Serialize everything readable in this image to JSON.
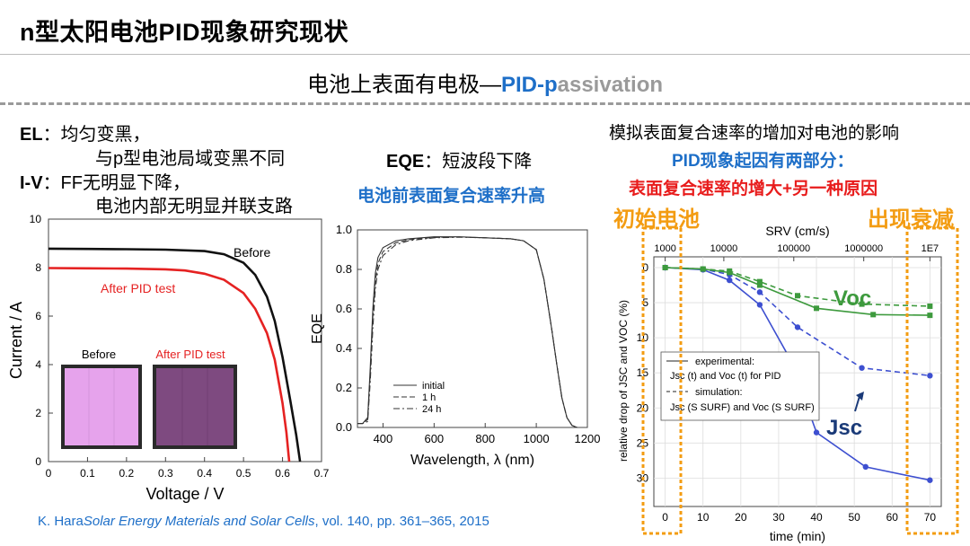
{
  "header": {
    "title": "n型太阳电池PID现象研究现状",
    "subtitle_pre": "电池上表面有电极—",
    "subtitle_hl1": "PID-p",
    "subtitle_hl2": "assivation"
  },
  "left_text": {
    "el_label": "EL",
    "el_line1": "：均匀变黑，",
    "el_line2": "与p型电池局域变黑不同",
    "iv_label": "I-V",
    "iv_line1": "：FF无明显下降，",
    "iv_line2": "电池内部无明显并联支路"
  },
  "middle_text": {
    "eqe_label": "EQE",
    "eqe_line": "：短波段下降",
    "eqe_note": "电池前表面复合速率升高"
  },
  "right_text": {
    "line1": "模拟表面复合速率的增加对电池的影响",
    "line2": "PID现象起因有两部分：",
    "line3": "表面复合速率的增大+另一种原因",
    "left_tag": "初始电池",
    "right_tag": "出现衰减"
  },
  "citation": {
    "author": "K. Hara",
    "journal": "Solar Energy Materials and Solar Cells",
    "rest": ", vol. 140, pp. 361–365, 2015"
  },
  "chart_data": [
    {
      "type": "line",
      "xlabel": "Voltage / V",
      "ylabel": "Current / A",
      "xlim": [
        0,
        0.7
      ],
      "ylim": [
        0,
        10
      ],
      "xticks": [
        "0",
        "0.1",
        "0.2",
        "0.3",
        "0.4",
        "0.5",
        "0.6",
        "0.7"
      ],
      "yticks": [
        "0",
        "2",
        "4",
        "6",
        "8",
        "10"
      ],
      "series": [
        {
          "name": "Before",
          "color": "#111111",
          "points": [
            [
              0,
              8.78
            ],
            [
              0.1,
              8.77
            ],
            [
              0.2,
              8.76
            ],
            [
              0.3,
              8.74
            ],
            [
              0.4,
              8.68
            ],
            [
              0.45,
              8.55
            ],
            [
              0.5,
              8.2
            ],
            [
              0.53,
              7.7
            ],
            [
              0.56,
              6.8
            ],
            [
              0.58,
              5.8
            ],
            [
              0.6,
              4.3
            ],
            [
              0.62,
              2.5
            ],
            [
              0.635,
              1.1
            ],
            [
              0.645,
              0
            ]
          ]
        },
        {
          "name": "After PID test",
          "color": "#e52222",
          "points": [
            [
              0,
              7.98
            ],
            [
              0.1,
              7.97
            ],
            [
              0.2,
              7.96
            ],
            [
              0.3,
              7.93
            ],
            [
              0.35,
              7.88
            ],
            [
              0.4,
              7.75
            ],
            [
              0.45,
              7.5
            ],
            [
              0.5,
              6.95
            ],
            [
              0.53,
              6.3
            ],
            [
              0.56,
              5.3
            ],
            [
              0.58,
              4.2
            ],
            [
              0.6,
              2.4
            ],
            [
              0.61,
              1.2
            ],
            [
              0.617,
              0
            ]
          ]
        }
      ],
      "inset_labels": [
        "Before",
        "After PID test"
      ],
      "inset_colors": [
        "#e6a3ec",
        "#7e4a80"
      ]
    },
    {
      "type": "line",
      "xlabel": "Wavelength, λ (nm)",
      "ylabel": "EQE",
      "xlim": [
        300,
        1200
      ],
      "ylim": [
        0,
        1.0
      ],
      "xticks": [
        "400",
        "600",
        "800",
        "1000",
        "1200"
      ],
      "yticks": [
        "0.0",
        "0.2",
        "0.4",
        "0.6",
        "0.8",
        "1.0"
      ],
      "legend": [
        "initial",
        "1 h",
        "24 h"
      ],
      "series": [
        {
          "name": "initial",
          "style": "solid",
          "points": [
            [
              300,
              0.02
            ],
            [
              320,
              0.02
            ],
            [
              340,
              0.05
            ],
            [
              350,
              0.3
            ],
            [
              360,
              0.6
            ],
            [
              370,
              0.78
            ],
            [
              380,
              0.86
            ],
            [
              400,
              0.91
            ],
            [
              450,
              0.945
            ],
            [
              500,
              0.955
            ],
            [
              600,
              0.965
            ],
            [
              700,
              0.965
            ],
            [
              800,
              0.96
            ],
            [
              900,
              0.955
            ],
            [
              950,
              0.945
            ],
            [
              1000,
              0.9
            ],
            [
              1030,
              0.75
            ],
            [
              1060,
              0.5
            ],
            [
              1080,
              0.32
            ],
            [
              1100,
              0.15
            ],
            [
              1120,
              0.05
            ],
            [
              1140,
              0.01
            ],
            [
              1160,
              0
            ]
          ]
        },
        {
          "name": "1 h",
          "style": "dash",
          "points": [
            [
              300,
              0.02
            ],
            [
              320,
              0.02
            ],
            [
              340,
              0.04
            ],
            [
              350,
              0.27
            ],
            [
              360,
              0.56
            ],
            [
              370,
              0.74
            ],
            [
              380,
              0.83
            ],
            [
              400,
              0.89
            ],
            [
              450,
              0.935
            ],
            [
              500,
              0.95
            ],
            [
              600,
              0.962
            ],
            [
              700,
              0.964
            ],
            [
              800,
              0.96
            ],
            [
              900,
              0.955
            ],
            [
              950,
              0.945
            ],
            [
              1000,
              0.9
            ],
            [
              1030,
              0.75
            ],
            [
              1060,
              0.5
            ],
            [
              1080,
              0.32
            ],
            [
              1100,
              0.15
            ],
            [
              1120,
              0.05
            ],
            [
              1140,
              0.01
            ],
            [
              1160,
              0
            ]
          ]
        },
        {
          "name": "24 h",
          "style": "dashdot",
          "points": [
            [
              300,
              0.02
            ],
            [
              320,
              0.02
            ],
            [
              340,
              0.03
            ],
            [
              350,
              0.23
            ],
            [
              360,
              0.5
            ],
            [
              370,
              0.7
            ],
            [
              380,
              0.8
            ],
            [
              400,
              0.87
            ],
            [
              450,
              0.925
            ],
            [
              500,
              0.945
            ],
            [
              600,
              0.96
            ],
            [
              700,
              0.963
            ],
            [
              800,
              0.96
            ],
            [
              900,
              0.955
            ],
            [
              950,
              0.945
            ],
            [
              1000,
              0.9
            ],
            [
              1030,
              0.75
            ],
            [
              1060,
              0.5
            ],
            [
              1080,
              0.32
            ],
            [
              1100,
              0.15
            ],
            [
              1120,
              0.05
            ],
            [
              1140,
              0.01
            ],
            [
              1160,
              0
            ]
          ]
        }
      ]
    },
    {
      "type": "line",
      "xlabel": "time (min)",
      "ylabel": "relative drop of JSC and VOC (%)",
      "top_label": "SRV (cm/s)",
      "xlim": [
        -3,
        73
      ],
      "ylim": [
        0,
        32
      ],
      "xticks": [
        "0",
        "10",
        "20",
        "30",
        "40",
        "50",
        "60",
        "70"
      ],
      "yticks": [
        "0",
        "5",
        "10",
        "15",
        "20",
        "25",
        "30"
      ],
      "top_ticks": [
        "1000",
        "10000",
        "100000",
        "1000000",
        "1E7"
      ],
      "top_tick_x": [
        0,
        15.5,
        34,
        52.5,
        70
      ],
      "legend_lines": [
        "experimental:",
        "Jsc (t) and Voc (t) for PID",
        "simulation:",
        "Jsc (S SURF) and Voc (S SURF)"
      ],
      "annotations": [
        "Voc",
        "Jsc"
      ],
      "series": [
        {
          "name": "Jsc experimental",
          "color": "#3d4fd0",
          "style": "solid",
          "points": [
            [
              0,
              0
            ],
            [
              10,
              0.3
            ],
            [
              17,
              1.8
            ],
            [
              25,
              5.3
            ],
            [
              33,
              13
            ],
            [
              40,
              23.5
            ],
            [
              53,
              28.4
            ],
            [
              70,
              30.3
            ]
          ]
        },
        {
          "name": "Jsc simulation",
          "color": "#3d4fd0",
          "style": "dash",
          "points": [
            [
              0,
              0
            ],
            [
              10,
              0.2
            ],
            [
              17,
              1.0
            ],
            [
              25,
              3.5
            ],
            [
              35,
              8.5
            ],
            [
              52,
              14.3
            ],
            [
              70,
              15.4
            ]
          ]
        },
        {
          "name": "Voc experimental",
          "color": "#3d9a3d",
          "style": "solid",
          "points": [
            [
              0,
              0
            ],
            [
              10,
              0.2
            ],
            [
              17,
              0.7
            ],
            [
              25,
              2.5
            ],
            [
              40,
              5.8
            ],
            [
              55,
              6.7
            ],
            [
              70,
              6.8
            ]
          ]
        },
        {
          "name": "Voc simulation",
          "color": "#3d9a3d",
          "style": "dash",
          "points": [
            [
              0,
              0
            ],
            [
              10,
              0.2
            ],
            [
              17,
              0.5
            ],
            [
              25,
              2.0
            ],
            [
              35,
              4.0
            ],
            [
              52,
              5.2
            ],
            [
              70,
              5.5
            ]
          ]
        }
      ]
    }
  ]
}
